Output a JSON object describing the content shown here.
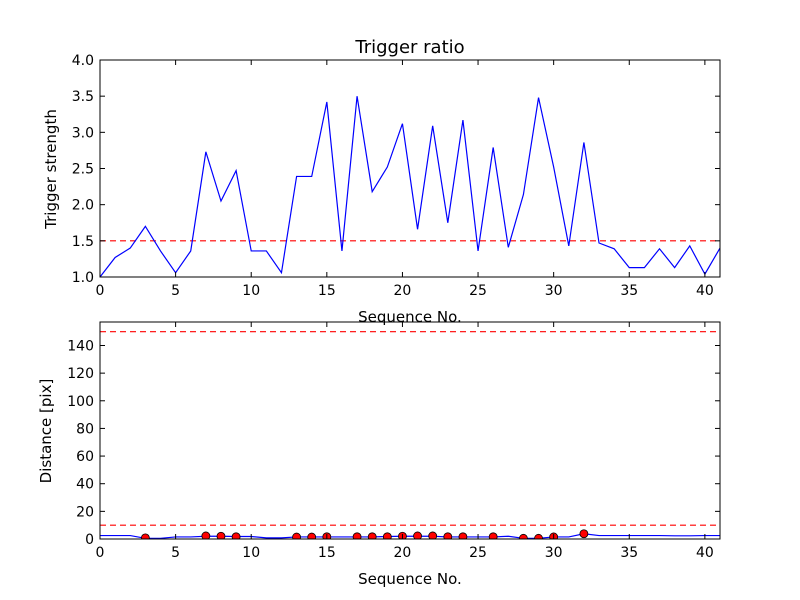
{
  "chart_data": [
    {
      "type": "line",
      "title": "Trigger ratio",
      "xlabel": "Sequence No.",
      "ylabel": "Trigger strength",
      "xlim": [
        0,
        41
      ],
      "ylim": [
        1.0,
        4.0
      ],
      "xticks": [
        "0",
        "5",
        "10",
        "15",
        "20",
        "25",
        "30",
        "35",
        "40"
      ],
      "yticks": [
        "1.0",
        "1.5",
        "2.0",
        "2.5",
        "3.0",
        "3.5",
        "4.0"
      ],
      "grid": false,
      "series": [
        {
          "color": "#0000ff",
          "style": "solid",
          "x": [
            0,
            1,
            2,
            3,
            4,
            5,
            6,
            7,
            8,
            9,
            10,
            11,
            12,
            13,
            14,
            15,
            16,
            17,
            18,
            19,
            20,
            21,
            22,
            23,
            24,
            25,
            26,
            27,
            28,
            29,
            30,
            31,
            32,
            33,
            34,
            35,
            36,
            37,
            38,
            39,
            40,
            41
          ],
          "values": [
            1.0,
            1.27,
            1.4,
            1.7,
            1.36,
            1.06,
            1.36,
            2.73,
            2.05,
            2.47,
            1.36,
            1.36,
            1.06,
            2.39,
            2.39,
            3.42,
            1.36,
            3.5,
            2.18,
            2.52,
            3.12,
            1.66,
            3.09,
            1.75,
            3.17,
            1.36,
            2.79,
            1.41,
            2.14,
            3.48,
            2.52,
            1.43,
            2.86,
            1.47,
            1.39,
            1.13,
            1.13,
            1.39,
            1.13,
            1.43,
            1.04,
            1.4
          ]
        }
      ],
      "reference_lines": [
        {
          "y": 1.5,
          "color": "#ff0000",
          "style": "dashed"
        }
      ]
    },
    {
      "type": "line",
      "title": "",
      "xlabel": "Sequence No.",
      "ylabel": "Distance [pix]",
      "xlim": [
        0,
        41
      ],
      "ylim": [
        0,
        157
      ],
      "xticks": [
        "0",
        "5",
        "10",
        "15",
        "20",
        "25",
        "30",
        "35",
        "40"
      ],
      "yticks": [
        "0",
        "20",
        "40",
        "60",
        "80",
        "100",
        "120",
        "140"
      ],
      "grid": false,
      "series": [
        {
          "color": "#0000ff",
          "style": "solid",
          "x": [
            0,
            1,
            2,
            3,
            4,
            5,
            6,
            7,
            8,
            9,
            10,
            11,
            12,
            13,
            14,
            15,
            16,
            17,
            18,
            19,
            20,
            21,
            22,
            23,
            24,
            25,
            26,
            27,
            28,
            29,
            30,
            31,
            32,
            33,
            34,
            35,
            36,
            37,
            38,
            39,
            40,
            41
          ],
          "values": [
            2.5,
            2.5,
            2.5,
            0.5,
            0.5,
            1.5,
            1.5,
            2.0,
            2.0,
            1.8,
            1.8,
            0.8,
            0.8,
            1.5,
            1.5,
            1.5,
            1.5,
            1.5,
            1.5,
            1.8,
            2.0,
            2.0,
            2.0,
            1.5,
            1.5,
            1.5,
            1.5,
            2.0,
            0.5,
            0.5,
            1.5,
            1.5,
            3.8,
            2.5,
            2.5,
            2.5,
            2.5,
            2.5,
            2.3,
            2.3,
            2.5,
            2.5
          ]
        },
        {
          "color": "#ff0000",
          "style": "markers",
          "x": [
            3,
            7,
            8,
            9,
            13,
            14,
            15,
            17,
            18,
            19,
            20,
            21,
            22,
            23,
            24,
            26,
            28,
            29,
            30,
            32
          ],
          "values": [
            0.8,
            2.2,
            2.0,
            1.6,
            1.4,
            1.4,
            1.6,
            1.6,
            1.6,
            1.6,
            2.0,
            2.2,
            2.2,
            1.6,
            1.6,
            1.6,
            0.5,
            0.5,
            1.5,
            3.8
          ]
        }
      ],
      "reference_lines": [
        {
          "y": 10,
          "color": "#ff0000",
          "style": "dashed"
        },
        {
          "y": 150,
          "color": "#ff0000",
          "style": "dashed"
        }
      ]
    }
  ]
}
